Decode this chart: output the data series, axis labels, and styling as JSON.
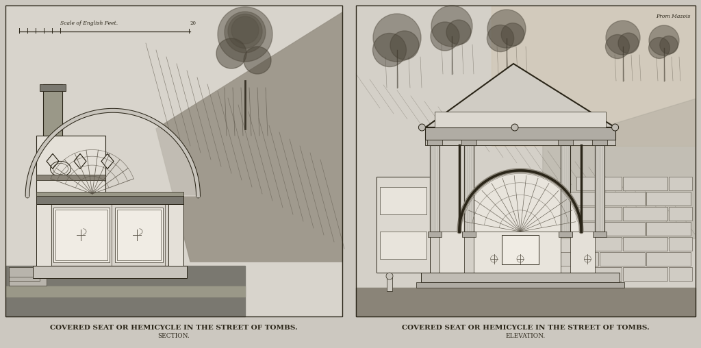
{
  "bg_color": "#ccc8c0",
  "left_panel_bg": "#d8d4cc",
  "right_panel_bg": "#d4d0c8",
  "border_color": "#2a2518",
  "dark_ink": "#2a2518",
  "medium_ink": "#5a5448",
  "light_ink": "#8a8478",
  "wall_fill": "#a8a498",
  "arch_fill": "#e8e4dc",
  "panel_fill": "#e4e0d8",
  "stone_fill": "#c8c4b8",
  "earth_fill": "#9a9488",
  "right_warm": "#c8a878",
  "title_left_line1": "COVERED SEAT OR HEMICYCLE IN THE STREET OF TOMBS.",
  "title_left_line2": "SECTION.",
  "title_right_line1": "COVERED SEAT OR HEMICYCLE IN THE STREET OF TOMBS.",
  "title_right_line2": "ELEVATION.",
  "scale_text": "Scale of English Feet.",
  "from_mazois": "From Mazois",
  "fig_width": 10.24,
  "fig_height": 5.08,
  "dpi": 100
}
